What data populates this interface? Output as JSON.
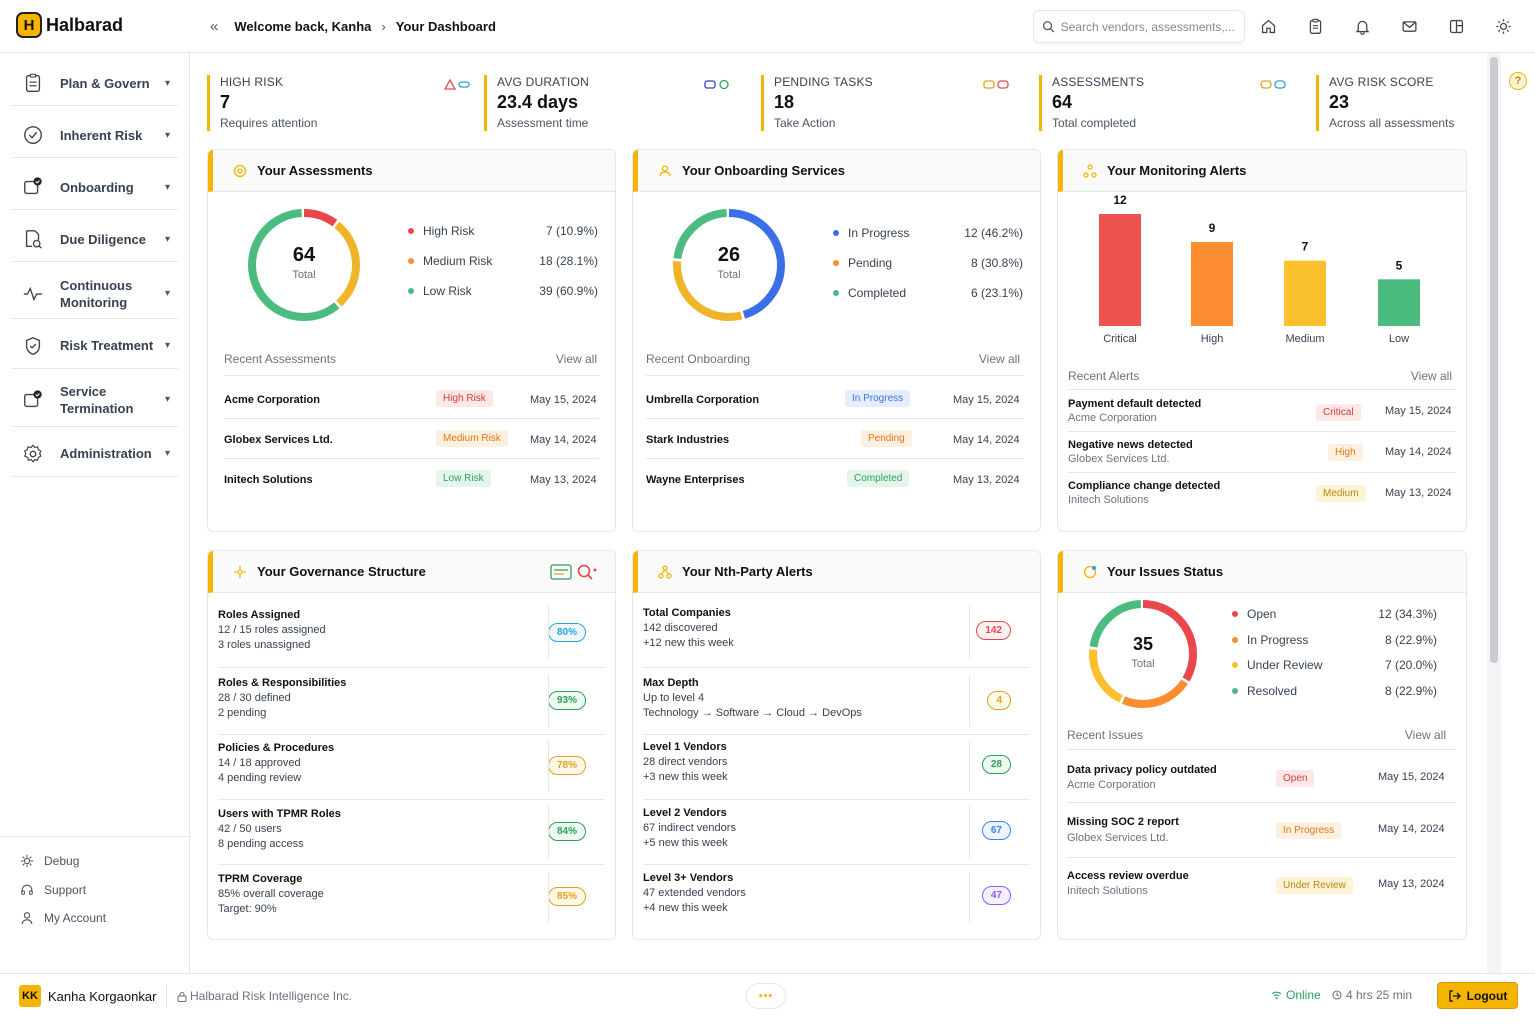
{
  "app": {
    "name": "Halbarad",
    "logo_letter": "H"
  },
  "breadcrumb": {
    "welcome": "Welcome back, Kanha",
    "current": "Your Dashboard"
  },
  "search": {
    "placeholder": "Search vendors, assessments,..."
  },
  "sidebar": {
    "items": [
      {
        "label": "Plan & Govern",
        "icon": "clipboard-icon"
      },
      {
        "label": "Inherent Risk",
        "icon": "gauge-icon"
      },
      {
        "label": "Onboarding",
        "icon": "onboarding-icon"
      },
      {
        "label": "Due Diligence",
        "icon": "document-search-icon"
      },
      {
        "label": "Continuous Monitoring",
        "icon": "pulse-icon"
      },
      {
        "label": "Risk Treatment",
        "icon": "shield-icon"
      },
      {
        "label": "Service Termination",
        "icon": "termination-icon"
      },
      {
        "label": "Administration",
        "icon": "gear-icon"
      }
    ],
    "bottom": [
      {
        "label": "Debug",
        "icon": "bug-icon"
      },
      {
        "label": "Support",
        "icon": "headset-icon"
      },
      {
        "label": "My Account",
        "icon": "user-icon"
      }
    ]
  },
  "kpis": [
    {
      "title": "HIGH RISK",
      "value": "7",
      "sub": "Requires attention"
    },
    {
      "title": "AVG DURATION",
      "value": "23.4 days",
      "sub": "Assessment time"
    },
    {
      "title": "PENDING TASKS",
      "value": "18",
      "sub": "Take Action"
    },
    {
      "title": "ASSESSMENTS",
      "value": "64",
      "sub": "Total completed"
    },
    {
      "title": "AVG RISK SCORE",
      "value": "23",
      "sub": "Across all assessments"
    }
  ],
  "assessments": {
    "title": "Your Assessments",
    "total": "64",
    "total_label": "Total",
    "legend": [
      {
        "label": "High Risk",
        "value": "7 (10.9%)",
        "count": 7,
        "color": "#e8474c"
      },
      {
        "label": "Medium Risk",
        "value": "18 (28.1%)",
        "count": 18,
        "color": "#f0b429"
      },
      {
        "label": "Low Risk",
        "value": "39 (60.9%)",
        "count": 39,
        "color": "#4cbb7f"
      }
    ],
    "recent_title": "Recent Assessments",
    "view_all": "View all",
    "rows": [
      {
        "name": "Acme Corporation",
        "badge": "High Risk",
        "date": "May 15, 2024"
      },
      {
        "name": "Globex Services Ltd.",
        "badge": "Medium Risk",
        "date": "May 14, 2024"
      },
      {
        "name": "Initech Solutions",
        "badge": "Low Risk",
        "date": "May 13, 2024"
      }
    ]
  },
  "onboarding": {
    "title": "Your Onboarding Services",
    "total": "26",
    "total_label": "Total",
    "legend": [
      {
        "label": "In Progress",
        "value": "12 (46.2%)",
        "count": 12,
        "color": "#3b6fe6"
      },
      {
        "label": "Pending",
        "value": "8 (30.8%)",
        "count": 8,
        "color": "#f0b429"
      },
      {
        "label": "Completed",
        "value": "6 (23.1%)",
        "count": 6,
        "color": "#4cbb7f"
      }
    ],
    "recent_title": "Recent Onboarding",
    "view_all": "View all",
    "rows": [
      {
        "name": "Umbrella Corporation",
        "badge": "In Progress",
        "date": "May 15, 2024"
      },
      {
        "name": "Stark Industries",
        "badge": "Pending",
        "date": "May 14, 2024"
      },
      {
        "name": "Wayne Enterprises",
        "badge": "Completed",
        "date": "May 13, 2024"
      }
    ]
  },
  "monitoring": {
    "title": "Your Monitoring Alerts",
    "recent_title": "Recent Alerts",
    "view_all": "View all",
    "rows": [
      {
        "name": "Payment default detected",
        "sub": "Acme Corporation",
        "badge": "Critical",
        "date": "May 15, 2024"
      },
      {
        "name": "Negative news detected",
        "sub": "Globex Services Ltd.",
        "badge": "High",
        "date": "May 14, 2024"
      },
      {
        "name": "Compliance change detected",
        "sub": "Initech Solutions",
        "badge": "Medium",
        "date": "May 13, 2024"
      }
    ]
  },
  "chart_data": {
    "type": "bar",
    "categories": [
      "Critical",
      "High",
      "Medium",
      "Low"
    ],
    "values": [
      12,
      9,
      7,
      5
    ],
    "colors": [
      "#ef5350",
      "#fb8c2f",
      "#fbc02d",
      "#4cbb7f"
    ],
    "ylim": [
      0,
      12
    ]
  },
  "governance": {
    "title": "Your Governance Structure",
    "rows": [
      {
        "name": "Roles Assigned",
        "l1": "12 / 15 roles assigned",
        "l2": "3 roles unassigned",
        "badge": "80%",
        "color": "#29a3d6"
      },
      {
        "name": "Roles & Responsibilities",
        "l1": "28 / 30 defined",
        "l2": "2 pending",
        "badge": "93%",
        "color": "#2e9e5b"
      },
      {
        "name": "Policies & Procedures",
        "l1": "14 / 18 approved",
        "l2": "4 pending review",
        "badge": "78%",
        "color": "#e0a21a"
      },
      {
        "name": "Users with TPMR Roles",
        "l1": "42 / 50 users",
        "l2": "8 pending access",
        "badge": "84%",
        "color": "#2e9e5b"
      },
      {
        "name": "TPRM Coverage",
        "l1": "85% overall coverage",
        "l2": "Target: 90%",
        "badge": "85%",
        "color": "#e0a21a"
      }
    ]
  },
  "nth_party": {
    "title": "Your Nth-Party Alerts",
    "rows": [
      {
        "name": "Total Companies",
        "l1": "142 discovered",
        "l2": "+12 new this week",
        "badge": "142",
        "color": "#e8474c"
      },
      {
        "name": "Max Depth",
        "l1": "Up to level 4",
        "l2": "Technology → Software → Cloud → DevOps",
        "badge": "4",
        "color": "#e0a21a"
      },
      {
        "name": "Level 1 Vendors",
        "l1": "28 direct vendors",
        "l2": "+3 new this week",
        "badge": "28",
        "color": "#2e9e5b"
      },
      {
        "name": "Level 2 Vendors",
        "l1": "67 indirect vendors",
        "l2": "+5 new this week",
        "badge": "67",
        "color": "#3b82f6"
      },
      {
        "name": "Level 3+ Vendors",
        "l1": "47 extended vendors",
        "l2": "+4 new this week",
        "badge": "47",
        "color": "#8b5cf6"
      }
    ]
  },
  "issues": {
    "title": "Your Issues Status",
    "total": "35",
    "total_label": "Total",
    "legend": [
      {
        "label": "Open",
        "value": "12 (34.3%)",
        "count": 12,
        "color": "#e8474c"
      },
      {
        "label": "In Progress",
        "value": "8 (22.9%)",
        "count": 8,
        "color": "#fb8c2f"
      },
      {
        "label": "Under Review",
        "value": "7 (20.0%)",
        "count": 7,
        "color": "#fbc02d"
      },
      {
        "label": "Resolved",
        "value": "8 (22.9%)",
        "count": 8,
        "color": "#4cbb7f"
      }
    ],
    "recent_title": "Recent Issues",
    "view_all": "View all",
    "rows": [
      {
        "name": "Data privacy policy outdated",
        "sub": "Acme Corporation",
        "badge": "Open",
        "date": "May 15, 2024"
      },
      {
        "name": "Missing SOC 2 report",
        "sub": "Globex Services Ltd.",
        "badge": "In Progress",
        "date": "May 14, 2024"
      },
      {
        "name": "Access review overdue",
        "sub": "Initech Solutions",
        "badge": "Under Review",
        "date": "May 13, 2024"
      }
    ]
  },
  "footer": {
    "initials": "KK",
    "user": "Kanha Korgaonkar",
    "org": "Halbarad Risk Intelligence Inc.",
    "more": "•••",
    "status": "Online",
    "session": "4 hrs 25 min",
    "logout": "Logout"
  },
  "help": "?",
  "colors": {
    "accent": "#f5b400"
  }
}
